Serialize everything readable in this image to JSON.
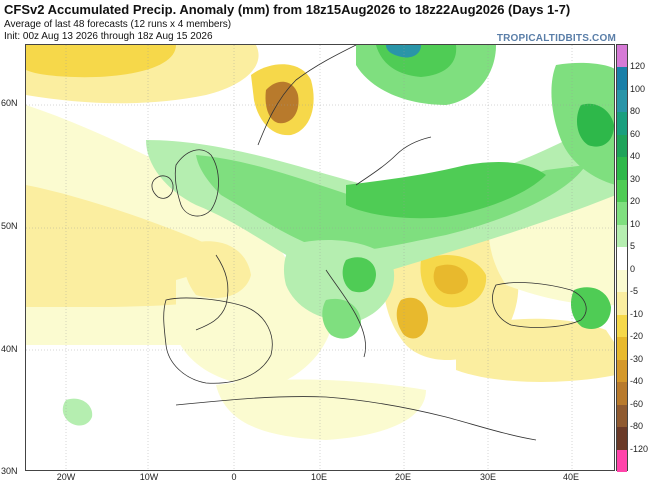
{
  "header": {
    "title": "CFSv2 Accumulated Precip. Anomaly (mm) from 18z15Aug2026 to 18z22Aug2026 (Days 1-7)",
    "subtitle1": "Average of last 48 forecasts (12 runs x 4 members)",
    "subtitle2": "Init: 00z Aug 13 2026 through 18z Aug 15 2026",
    "brand": "TROPICALTIDBITS.COM"
  },
  "axes": {
    "lat_labels": [
      "60N",
      "50N",
      "40N",
      "30N"
    ],
    "lon_labels": [
      "20W",
      "10W",
      "0",
      "10E",
      "20E",
      "30E",
      "40E"
    ]
  },
  "colorbar": {
    "labels": [
      "120",
      "100",
      "80",
      "60",
      "40",
      "30",
      "20",
      "10",
      "5",
      "0",
      "-5",
      "-10",
      "-20",
      "-30",
      "-40",
      "-60",
      "-80",
      "-120"
    ],
    "colors": [
      "#d67ad6",
      "#1a7fa8",
      "#2a95a8",
      "#1a9f7e",
      "#1fa35a",
      "#2eb84a",
      "#4fcc55",
      "#7fdf7f",
      "#b5eeb0",
      "#ffffff",
      "#fbfbd0",
      "#fbeea0",
      "#f6d84a",
      "#e8b92d",
      "#d4982a",
      "#b87a2c",
      "#8f5a30",
      "#6a3a28",
      "#ff44aa"
    ]
  },
  "map": {
    "land_color": "#ffffff",
    "dry_colors": [
      "#fbfbd0",
      "#fbeea0",
      "#f6d84a",
      "#e8b92d",
      "#b87a2c",
      "#8f5a30"
    ],
    "wet_colors": [
      "#b5eeb0",
      "#7fdf7f",
      "#4fcc55",
      "#2eb84a",
      "#1f9e45",
      "#2a95a8"
    ]
  }
}
